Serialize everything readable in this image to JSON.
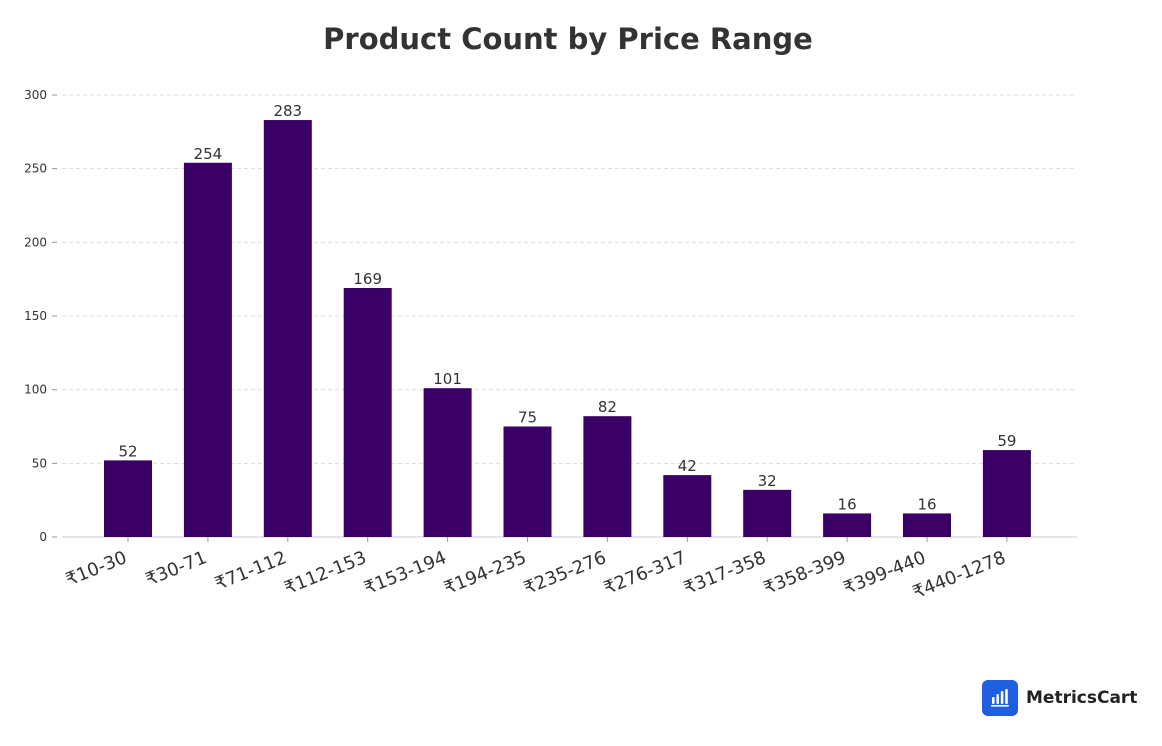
{
  "chart_data": {
    "type": "bar",
    "title": "Product Count by Price Range",
    "xlabel": "",
    "ylabel": "",
    "categories": [
      "₹10-30",
      "₹30-71",
      "₹71-112",
      "₹112-153",
      "₹153-194",
      "₹194-235",
      "₹235-276",
      "₹276-317",
      "₹317-358",
      "₹358-399",
      "₹399-440",
      "₹440-1278"
    ],
    "values": [
      52,
      254,
      283,
      169,
      101,
      75,
      82,
      42,
      32,
      16,
      16,
      59
    ],
    "ylim": [
      0,
      300
    ],
    "yticks": [
      0,
      50,
      100,
      150,
      200,
      250,
      300
    ],
    "grid": true,
    "bar_color": "#3a0066",
    "data_labels": true
  },
  "brand": {
    "name": "MetricsCart",
    "icon": "bar-chart-icon",
    "color": "#1d5fe0"
  }
}
